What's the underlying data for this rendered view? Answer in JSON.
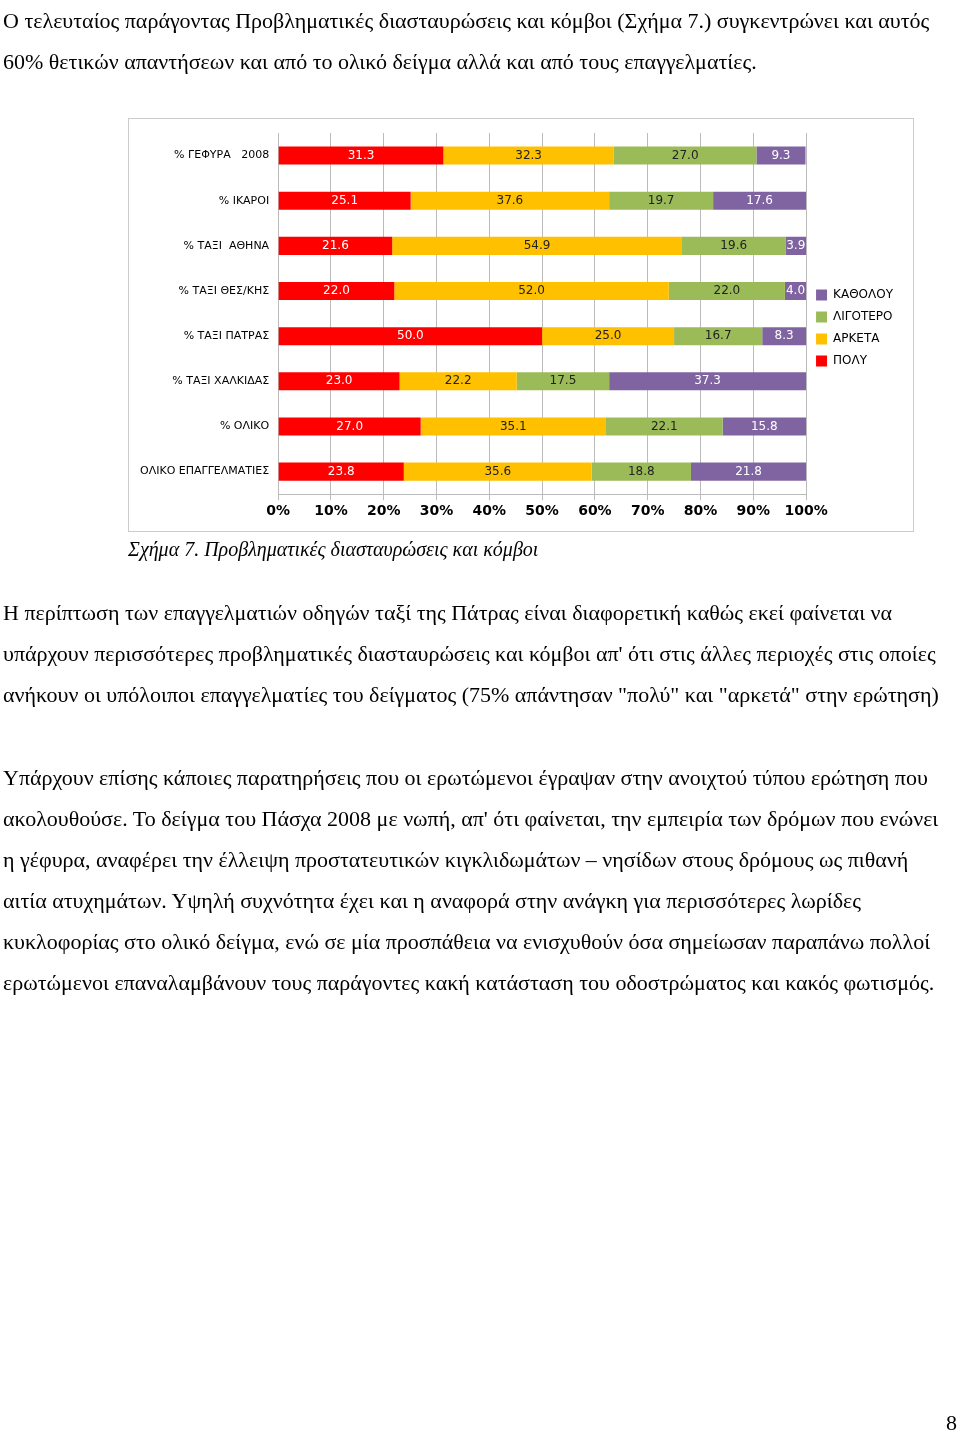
{
  "chart_data": {
    "type": "bar",
    "orientation": "horizontal",
    "stacked": true,
    "categories": [
      "% ΓΕΦΥΡΑ   2008",
      "% ΙΚΑΡΟΙ",
      "% ΤΑΞΙ  ΑΘΗΝΑ",
      "% ΤΑΞΙ ΘΕΣ/ΚΗΣ",
      "% ΤΑΞΙ ΠΑΤΡΑΣ",
      "% ΤΑΞΙ ΧΑΛΚΙΔΑΣ",
      "% ΟΛΙΚΟ",
      "ΟΛΙΚΟ ΕΠΑΓΓΕΛΜΑΤΙΕΣ"
    ],
    "series": [
      {
        "name": "ΠΟΛΥ",
        "color": "#ff0000",
        "values": [
          31.3,
          25.1,
          21.6,
          22.0,
          50.0,
          23.0,
          27.0,
          23.8
        ],
        "value_labels": [
          "31.3",
          "25.1",
          "21.6",
          "22.0",
          "50.0",
          "23.0",
          "27.0",
          "23.8"
        ]
      },
      {
        "name": "ΑΡΚΕΤΑ",
        "color": "#ffc000",
        "values": [
          32.3,
          37.6,
          54.9,
          52.0,
          25.0,
          22.2,
          35.1,
          35.6
        ],
        "value_labels": [
          "32.3",
          "37.6",
          "54.9",
          "52.0",
          "25.0",
          "22.2",
          "35.1",
          "35.6"
        ]
      },
      {
        "name": "ΛΙΓΟΤΕΡΟ",
        "color": "#9bbb59",
        "values": [
          27.0,
          19.7,
          19.6,
          22.0,
          16.7,
          17.5,
          22.1,
          18.8
        ],
        "value_labels": [
          "27.0",
          "19.7",
          "19.6",
          "22.0",
          "16.7",
          "17.5",
          "22.1",
          "18.8"
        ]
      },
      {
        "name": "ΚΑΘΟΛΟΥ",
        "color": "#8064a2",
        "values": [
          9.3,
          17.6,
          3.9,
          4.0,
          8.3,
          37.3,
          15.8,
          21.8
        ],
        "value_labels": [
          "9.3",
          "17.6",
          "3.9",
          "4.0",
          "8.3",
          "37.3",
          "15.8",
          "21.8"
        ]
      }
    ],
    "xlim": [
      0,
      100
    ],
    "xticks": [
      {
        "value": 0,
        "label": "0%"
      },
      {
        "value": 10,
        "label": "10%"
      },
      {
        "value": 20,
        "label": "20%"
      },
      {
        "value": 30,
        "label": "30%"
      },
      {
        "value": 40,
        "label": "40%"
      },
      {
        "value": 50,
        "label": "50%"
      },
      {
        "value": 60,
        "label": "60%"
      },
      {
        "value": 70,
        "label": "70%"
      },
      {
        "value": 80,
        "label": "80%"
      },
      {
        "value": 90,
        "label": "90%"
      },
      {
        "value": 100,
        "label": "100%"
      }
    ],
    "grid": "x",
    "legend": "right",
    "annotations": [
      "Ο τελευταίος παράγοντας Προβληματικές διασταυρώσεις και κόμβοι (Σχήμα 7.) συγκεντρώνει και αυτός 60% θετικών απαντήσεων και από το ολικό δείγμα αλλά και από τους επαγγελματίες.",
      "Σχήμα 7. Προβληματικές διασταυρώσεις και κόμβοι",
      "Η περίπτωση των επαγγελματιών οδηγών ταξί της Πάτρας είναι διαφορετική καθώς εκεί φαίνεται να υπάρχουν περισσότερες προβληματικές διασταυρώσεις και κόμβοι απ' ότι στις άλλες περιοχές στις οποίες ανήκουν οι υπόλοιποι επαγγελματίες του δείγματος (75% απάντησαν \"πολύ\" και \"αρκετά\" στην ερώτηση)",
      "Υπάρχουν επίσης κάποιες παρατηρήσεις που οι ερωτώμενοι έγραψαν στην ανοιχτού τύπου ερώτηση που ακολουθούσε. Το δείγμα του Πάσχα 2008 με νωπή, απ' ότι φαίνεται, την εμπειρία των δρόμων που ενώνει η γέφυρα, αναφέρει την έλλειψη προστατευτικών κιγκλιδωμάτων – νησίδων στους δρόμους ως πιθανή αιτία ατυχημάτων. Υψηλή συχνότητα έχει και η αναφορά στην ανάγκη για περισσότερες λωρίδες κυκλοφορίας στο ολικό δείγμα, ενώ σε μία προσπάθεια να ενισχυθούν όσα σημείωσαν παραπάνω πολλοί ερωτώμενοι επαναλαμβάνουν τους παράγοντες κακή κατάσταση του οδοστρώματος και κακός φωτισμός.",
      "8"
    ]
  }
}
